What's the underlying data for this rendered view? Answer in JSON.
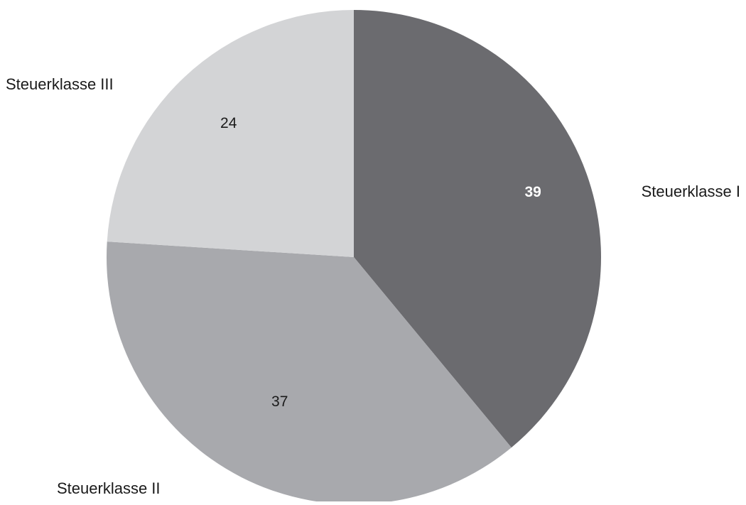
{
  "chart_data": {
    "type": "pie",
    "title": "",
    "slices": [
      {
        "label": "Steuerklasse I",
        "value": 39,
        "value_label": "39",
        "color": "#6b6b6f",
        "value_label_color": "#ffffff",
        "value_label_bold": true
      },
      {
        "label": "Steuerklasse II",
        "value": 37,
        "value_label": "37",
        "color": "#a8a9ad",
        "value_label_color": "#1a1a1a",
        "value_label_bold": false
      },
      {
        "label": "Steuerklasse III",
        "value": 24,
        "value_label": "24",
        "color": "#d3d4d6",
        "value_label_color": "#1a1a1a",
        "value_label_bold": false
      }
    ],
    "start_angle": "12 o'clock",
    "direction": "clockwise",
    "legend": "none"
  }
}
